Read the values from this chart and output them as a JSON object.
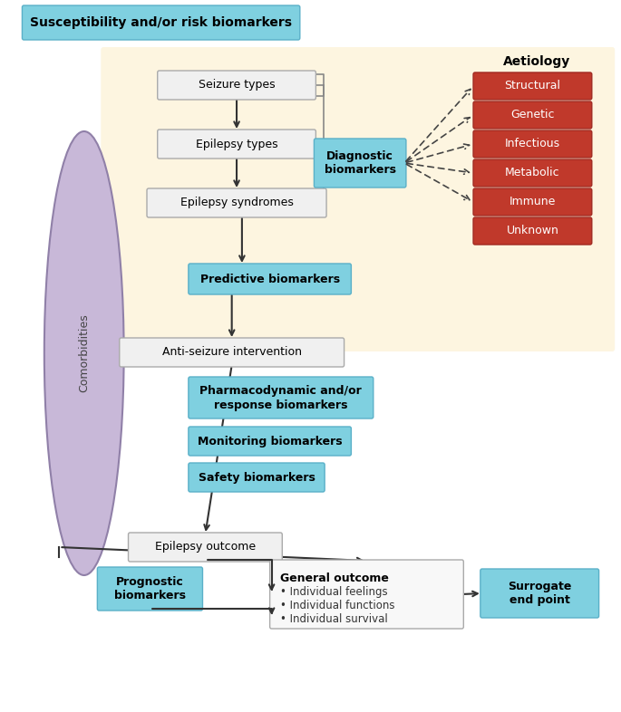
{
  "title": "",
  "bg_color": "#ffffff",
  "yellow_bg": "#fdf5e0",
  "light_blue_box": "#7fd0e0",
  "light_blue_bg": "#a8d8e8",
  "red_box": "#c0392b",
  "white_box_edge": "#aaaaaa",
  "ellipse_color": "#c8b8d8",
  "susceptibility_label": "Susceptibility and/or risk biomarkers",
  "comorbidities_label": "Comorbidities",
  "aetiology_label": "Aetiology",
  "main_flow": [
    "Seizure types",
    "Epilepsy types",
    "Epilepsy syndromes",
    "Anti-seizure intervention",
    "Epilepsy outcome"
  ],
  "right_biomarkers": [
    "Diagnostic\nbiomarkers"
  ],
  "aetiology_items": [
    "Structural",
    "Genetic",
    "Infectious",
    "Metabolic",
    "Immune",
    "Unknown"
  ],
  "side_biomarkers": [
    "Predictive biomarkers",
    "Pharmacodynamic and/or\nresponse biomarkers",
    "Monitoring biomarkers",
    "Safety biomarkers"
  ],
  "bottom_left_biomarker": "Prognostic\nbiomarkers",
  "general_outcome_label": "General outcome",
  "general_outcome_bullets": [
    "• Individual feelings",
    "• Individual functions",
    "• Individual survival"
  ],
  "surrogate_label": "Surrogate\nend point"
}
